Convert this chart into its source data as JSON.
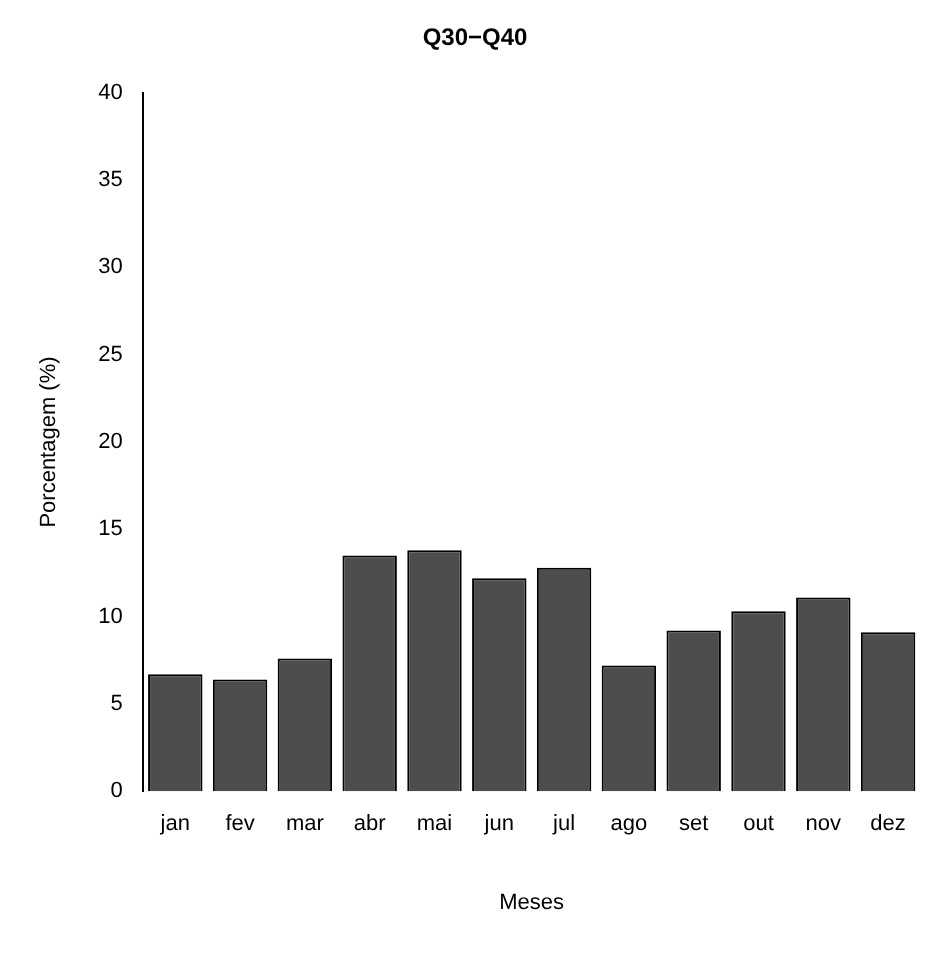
{
  "chart_data": {
    "type": "bar",
    "title": "Q30−Q40",
    "xlabel": "Meses",
    "ylabel": "Porcentagem (%)",
    "categories": [
      "jan",
      "fev",
      "mar",
      "abr",
      "mai",
      "jun",
      "jul",
      "ago",
      "set",
      "out",
      "nov",
      "dez"
    ],
    "values": [
      6.7,
      6.4,
      7.6,
      13.5,
      13.8,
      12.2,
      12.8,
      7.2,
      9.2,
      10.3,
      11.1,
      9.1
    ],
    "color": "#4d4d4d",
    "ylim": [
      0,
      40
    ],
    "yticks": [
      0,
      5,
      10,
      15,
      20,
      25,
      30,
      35,
      40
    ],
    "grid": false,
    "legend": false
  }
}
